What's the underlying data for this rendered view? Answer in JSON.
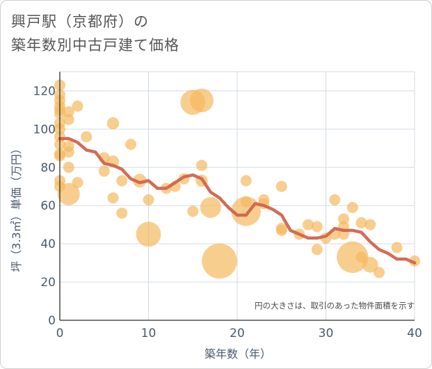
{
  "chart_data": {
    "type": "scatter",
    "title_line1": "興戸駅（京都府）の",
    "title_line2": "築年数別中古戸建て価格",
    "xlabel": "築年数（年）",
    "ylabel": "坪（3.3㎡）単価（万円）",
    "annotation": "円の大きさは、取引のあった物件面積を示す",
    "xlim": [
      0,
      40
    ],
    "ylim": [
      0,
      130
    ],
    "xticks": [
      0,
      10,
      20,
      30,
      40
    ],
    "yticks": [
      0,
      20,
      40,
      60,
      80,
      100,
      120
    ],
    "grid": true,
    "colors": {
      "bubble": "#f5b95f",
      "line": "#d0644e",
      "grid": "#d3dbe6",
      "axis_text": "#4a5a6a"
    },
    "series": [
      {
        "kind": "bubble",
        "points": [
          {
            "x": 0,
            "y": 123,
            "s": 1
          },
          {
            "x": 0,
            "y": 118,
            "s": 1
          },
          {
            "x": 0,
            "y": 115,
            "s": 1
          },
          {
            "x": 0,
            "y": 112,
            "s": 1
          },
          {
            "x": 0,
            "y": 110,
            "s": 1
          },
          {
            "x": 0,
            "y": 108,
            "s": 1
          },
          {
            "x": 0,
            "y": 103,
            "s": 1
          },
          {
            "x": 0,
            "y": 100,
            "s": 1
          },
          {
            "x": 0,
            "y": 96,
            "s": 1
          },
          {
            "x": 0,
            "y": 92,
            "s": 1
          },
          {
            "x": 0,
            "y": 87,
            "s": 1
          },
          {
            "x": 0,
            "y": 86,
            "s": 1
          },
          {
            "x": 0,
            "y": 73,
            "s": 1
          },
          {
            "x": 0,
            "y": 70,
            "s": 1
          },
          {
            "x": 1,
            "y": 109,
            "s": 1
          },
          {
            "x": 1,
            "y": 105,
            "s": 1
          },
          {
            "x": 1,
            "y": 91,
            "s": 1
          },
          {
            "x": 1,
            "y": 88,
            "s": 1
          },
          {
            "x": 1,
            "y": 80,
            "s": 1
          },
          {
            "x": 1,
            "y": 66,
            "s": 4
          },
          {
            "x": 2,
            "y": 112,
            "s": 1
          },
          {
            "x": 2,
            "y": 72,
            "s": 1
          },
          {
            "x": 3,
            "y": 96,
            "s": 1
          },
          {
            "x": 5,
            "y": 85,
            "s": 1
          },
          {
            "x": 5,
            "y": 78,
            "s": 1
          },
          {
            "x": 6,
            "y": 103,
            "s": 1.2
          },
          {
            "x": 6,
            "y": 83,
            "s": 1.2
          },
          {
            "x": 6,
            "y": 64,
            "s": 1
          },
          {
            "x": 7,
            "y": 73,
            "s": 1
          },
          {
            "x": 7,
            "y": 56,
            "s": 1
          },
          {
            "x": 8,
            "y": 92,
            "s": 1
          },
          {
            "x": 9,
            "y": 73,
            "s": 1.5
          },
          {
            "x": 10,
            "y": 63,
            "s": 1
          },
          {
            "x": 10,
            "y": 45,
            "s": 5
          },
          {
            "x": 12,
            "y": 69,
            "s": 1
          },
          {
            "x": 13,
            "y": 70,
            "s": 1
          },
          {
            "x": 14,
            "y": 74,
            "s": 1
          },
          {
            "x": 15,
            "y": 114,
            "s": 5
          },
          {
            "x": 15,
            "y": 57,
            "s": 1
          },
          {
            "x": 16,
            "y": 115,
            "s": 4.5
          },
          {
            "x": 16,
            "y": 81,
            "s": 1
          },
          {
            "x": 16,
            "y": 73,
            "s": 1.2
          },
          {
            "x": 17,
            "y": 59,
            "s": 3.5
          },
          {
            "x": 18,
            "y": 31,
            "s": 10
          },
          {
            "x": 21,
            "y": 73,
            "s": 1
          },
          {
            "x": 21,
            "y": 62,
            "s": 1
          },
          {
            "x": 21,
            "y": 57,
            "s": 7
          },
          {
            "x": 23,
            "y": 63,
            "s": 1
          },
          {
            "x": 23,
            "y": 61,
            "s": 1
          },
          {
            "x": 25,
            "y": 70,
            "s": 1
          },
          {
            "x": 25,
            "y": 48,
            "s": 1
          },
          {
            "x": 25,
            "y": 47,
            "s": 1
          },
          {
            "x": 27,
            "y": 45,
            "s": 1
          },
          {
            "x": 28,
            "y": 50,
            "s": 1
          },
          {
            "x": 29,
            "y": 49,
            "s": 1
          },
          {
            "x": 29,
            "y": 37,
            "s": 1
          },
          {
            "x": 30,
            "y": 43,
            "s": 1
          },
          {
            "x": 31,
            "y": 63,
            "s": 1
          },
          {
            "x": 31,
            "y": 45,
            "s": 1
          },
          {
            "x": 32,
            "y": 53,
            "s": 1
          },
          {
            "x": 32,
            "y": 49,
            "s": 1
          },
          {
            "x": 32,
            "y": 45,
            "s": 1
          },
          {
            "x": 33,
            "y": 59,
            "s": 1
          },
          {
            "x": 33,
            "y": 33,
            "s": 8
          },
          {
            "x": 34,
            "y": 51,
            "s": 1
          },
          {
            "x": 34,
            "y": 33,
            "s": 1
          },
          {
            "x": 35,
            "y": 50,
            "s": 1
          },
          {
            "x": 35,
            "y": 29,
            "s": 2
          },
          {
            "x": 36,
            "y": 25,
            "s": 1
          },
          {
            "x": 38,
            "y": 38,
            "s": 1
          },
          {
            "x": 40,
            "y": 31,
            "s": 1
          }
        ]
      },
      {
        "kind": "line",
        "x": [
          0,
          1,
          2,
          3,
          4,
          5,
          6,
          7,
          8,
          9,
          10,
          11,
          12,
          13,
          14,
          15,
          16,
          17,
          18,
          19,
          20,
          21,
          22,
          23,
          24,
          25,
          26,
          27,
          28,
          29,
          30,
          31,
          32,
          33,
          34,
          35,
          36,
          37,
          38,
          39,
          40
        ],
        "y": [
          95,
          95,
          93,
          89,
          88,
          82,
          81,
          79,
          74,
          72,
          73,
          69,
          69,
          72,
          75,
          76,
          74,
          67,
          64,
          59,
          55,
          55,
          61,
          60,
          58,
          55,
          47,
          45,
          43,
          43,
          44,
          48,
          47,
          47,
          46,
          41,
          37,
          35,
          32,
          32,
          30
        ]
      }
    ]
  }
}
